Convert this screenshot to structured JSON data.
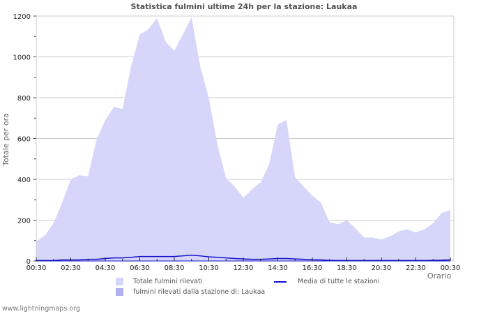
{
  "title": "Statistica fulmini ultime 24h per la stazione: Laukaa",
  "footer": "www.lightningmaps.org",
  "colors": {
    "total_fill": "#d6d6fa",
    "station_fill": "#b0b0f0",
    "average_line": "#1010c8",
    "grid": "#cccccc"
  },
  "legend": {
    "total": "Totale fulmini rilevati",
    "station": "fulmini rilevati dalla stazione di: Laukaa",
    "average": "Media di tutte le stazioni"
  },
  "chart_data": {
    "type": "area",
    "title": "Statistica fulmini ultime 24h per la stazione: Laukaa",
    "xlabel": "Orario",
    "ylabel": "Totale per ora",
    "ylim": [
      0,
      1200
    ],
    "yticks": [
      0,
      200,
      400,
      600,
      800,
      1000,
      1200
    ],
    "xticks": [
      "00:30",
      "02:30",
      "04:30",
      "06:30",
      "08:30",
      "10:30",
      "12:30",
      "14:30",
      "16:30",
      "18:30",
      "20:30",
      "22:30",
      "00:30"
    ],
    "grid": true,
    "legend_position": "bottom",
    "x": [
      "00:30",
      "01:00",
      "01:30",
      "02:00",
      "02:30",
      "03:00",
      "03:30",
      "04:00",
      "04:30",
      "05:00",
      "05:30",
      "06:00",
      "06:30",
      "07:00",
      "07:30",
      "08:00",
      "08:30",
      "09:00",
      "09:30",
      "10:00",
      "10:30",
      "11:00",
      "11:30",
      "12:00",
      "12:30",
      "13:00",
      "13:30",
      "14:00",
      "14:30",
      "15:00",
      "15:30",
      "16:00",
      "16:30",
      "17:00",
      "17:30",
      "18:00",
      "18:30",
      "19:00",
      "19:30",
      "20:00",
      "20:30",
      "21:00",
      "21:30",
      "22:00",
      "22:30",
      "23:00",
      "23:30",
      "00:00",
      "00:30"
    ],
    "series": [
      {
        "name": "Totale fulmini rilevati",
        "style": "area",
        "values": [
          95,
          125,
          185,
          285,
          400,
          420,
          415,
          595,
          690,
          755,
          745,
          955,
          1110,
          1135,
          1190,
          1075,
          1030,
          1110,
          1195,
          955,
          800,
          570,
          405,
          365,
          310,
          350,
          385,
          475,
          670,
          690,
          410,
          365,
          320,
          285,
          190,
          180,
          200,
          160,
          115,
          115,
          105,
          120,
          145,
          155,
          140,
          155,
          185,
          235,
          250
        ]
      },
      {
        "name": "fulmini rilevati dalla stazione di: Laukaa",
        "style": "area",
        "values": [
          0,
          0,
          0,
          0,
          0,
          0,
          0,
          0,
          0,
          0,
          0,
          0,
          0,
          0,
          0,
          0,
          0,
          0,
          0,
          0,
          0,
          0,
          0,
          0,
          0,
          0,
          0,
          0,
          0,
          0,
          0,
          0,
          0,
          0,
          0,
          0,
          0,
          0,
          0,
          0,
          0,
          0,
          0,
          0,
          0,
          0,
          0,
          0,
          0
        ]
      },
      {
        "name": "Media di tutte le stazioni",
        "style": "line",
        "values": [
          2,
          2,
          2,
          5,
          5,
          5,
          8,
          8,
          12,
          15,
          15,
          18,
          22,
          22,
          22,
          22,
          22,
          25,
          28,
          25,
          20,
          18,
          15,
          12,
          10,
          8,
          8,
          10,
          12,
          12,
          10,
          8,
          6,
          5,
          3,
          2,
          2,
          2,
          2,
          2,
          2,
          2,
          2,
          2,
          2,
          2,
          3,
          4,
          5
        ]
      }
    ]
  }
}
